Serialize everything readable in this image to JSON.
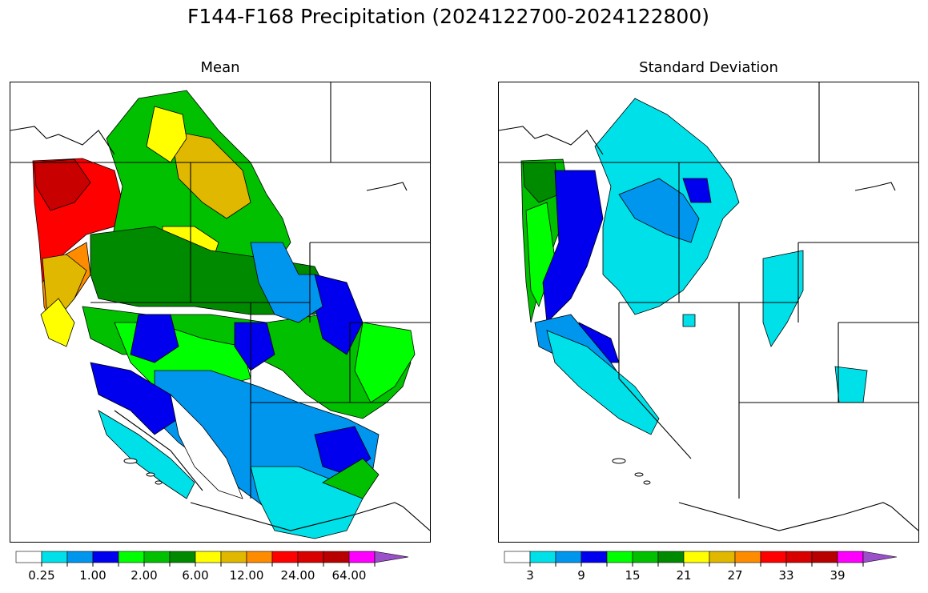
{
  "figure": {
    "title": "F144-F168 Precipitation (2024122700-2024122800)"
  },
  "panels": [
    {
      "title": "Mean",
      "colorbar": {
        "colors": [
          "#ffffff",
          "#00e0e8",
          "#0096ee",
          "#0000ee",
          "#00ff00",
          "#00c000",
          "#008a00",
          "#ffff00",
          "#e0b800",
          "#ff8c00",
          "#ff0000",
          "#d80000",
          "#b80000",
          "#ff00ff",
          "#9a50c8"
        ],
        "ticks": [
          "0.25",
          "1.00",
          "2.00",
          "6.00",
          "12.00",
          "24.00",
          "64.00"
        ],
        "extend": "max"
      }
    },
    {
      "title": "Standard Deviation",
      "colorbar": {
        "colors": [
          "#ffffff",
          "#00e0e8",
          "#0096ee",
          "#0000ee",
          "#00ff00",
          "#00c000",
          "#008a00",
          "#ffff00",
          "#e0b800",
          "#ff8c00",
          "#ff0000",
          "#d80000",
          "#b80000",
          "#ff00ff",
          "#9a50c8"
        ],
        "ticks": [
          "3",
          "9",
          "15",
          "21",
          "27",
          "33",
          "39"
        ],
        "extend": "max"
      }
    }
  ]
}
